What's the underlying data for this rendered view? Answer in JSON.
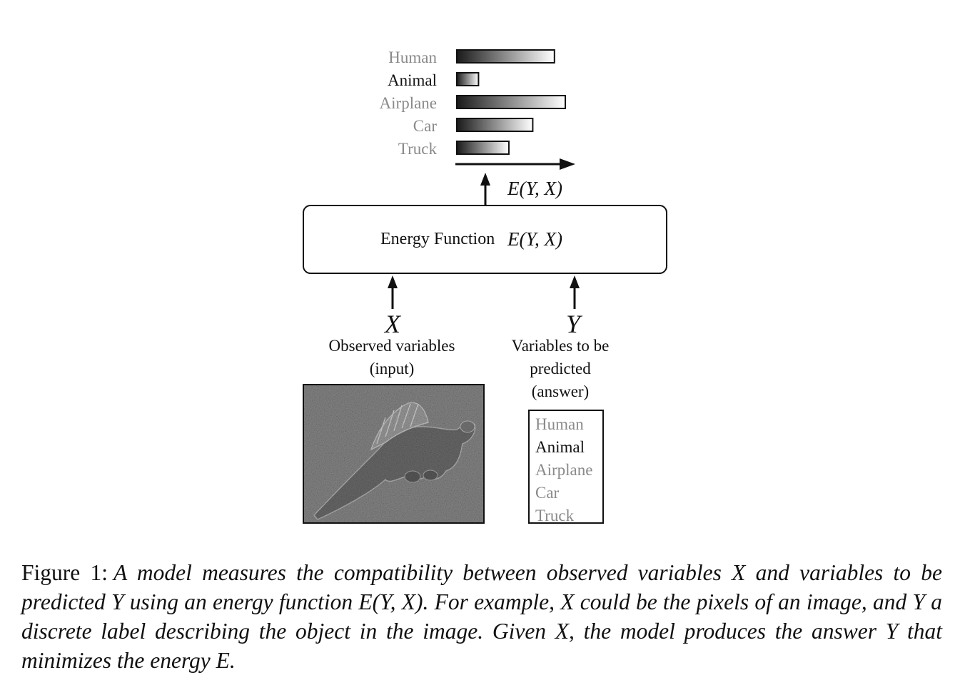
{
  "chart": {
    "categories": [
      "Human",
      "Animal",
      "Airplane",
      "Car",
      "Truck"
    ],
    "energies": [
      0.9,
      0.2,
      1.0,
      0.7,
      0.48
    ],
    "axis_label": "E(Y, X)"
  },
  "energy_box": {
    "label": "Energy Function",
    "math": "E(Y, X)"
  },
  "input": {
    "symbol": "X",
    "desc_line1": "Observed variables",
    "desc_line2": "(input)"
  },
  "output": {
    "symbol": "Y",
    "desc_line1": "Variables to be",
    "desc_line2": "predicted",
    "desc_line3": "(answer)",
    "options": [
      "Human",
      "Animal",
      "Airplane",
      "Car",
      "Truck"
    ],
    "selected": "Animal"
  },
  "colors": {
    "selected_text": "#111111",
    "unselected_text": "#8a8a8a",
    "bar_dark": "#1a1a1a",
    "bar_light": "#ffffff"
  },
  "caption": {
    "label": "Figure 1:",
    "text": "A model measures the compatibility between observed variables X and variables to be predicted Y using an energy function E(Y, X). For example, X could be the pixels of an image, and Y a discrete label describing the object in the image. Given X, the model produces the answer Y that minimizes the energy E."
  }
}
